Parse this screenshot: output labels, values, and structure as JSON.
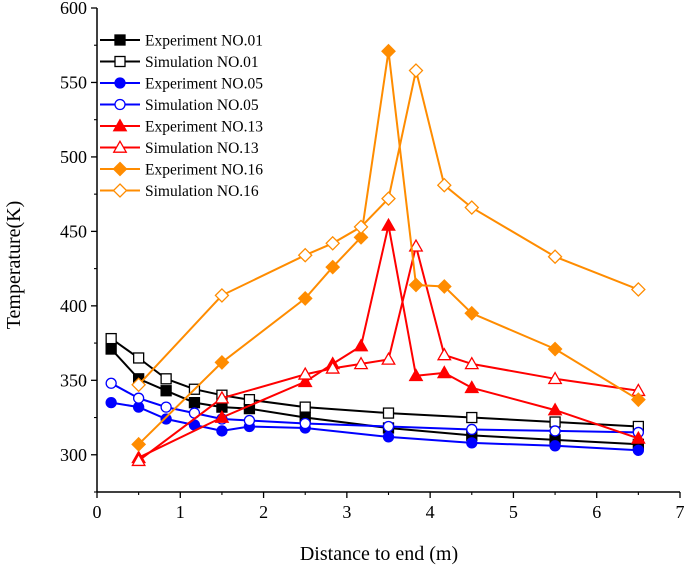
{
  "chart_data": {
    "type": "line",
    "title": "",
    "xlabel": "Distance to end (m)",
    "ylabel": "Temperature(K)",
    "xlim": [
      0,
      7
    ],
    "ylim": [
      275,
      600
    ],
    "xticks": [
      "0",
      "1",
      "2",
      "3",
      "4",
      "5",
      "6",
      "7"
    ],
    "yticks": [
      "300",
      "350",
      "400",
      "450",
      "500",
      "550",
      "600"
    ],
    "ytick_values": [
      300,
      350,
      400,
      450,
      500,
      550,
      600
    ],
    "xtick_values": [
      0,
      1,
      2,
      3,
      4,
      5,
      6,
      7
    ],
    "legend_position": "top-left",
    "series": [
      {
        "name": "Experiment NO.01",
        "color": "#000000",
        "marker": "square",
        "filled": true,
        "x": [
          0.17,
          0.5,
          0.83,
          1.17,
          1.5,
          1.83,
          2.5,
          3.5,
          4.5,
          5.5,
          6.5
        ],
        "y": [
          371,
          351,
          343,
          335,
          332,
          331,
          325,
          318,
          313,
          310,
          307
        ]
      },
      {
        "name": "Simulation NO.01",
        "color": "#000000",
        "marker": "square",
        "filled": false,
        "x": [
          0.17,
          0.5,
          0.83,
          1.17,
          1.5,
          1.83,
          2.5,
          3.5,
          4.5,
          5.5,
          6.5
        ],
        "y": [
          378,
          365,
          351,
          344,
          340,
          337,
          332,
          328,
          325,
          322,
          319
        ]
      },
      {
        "name": "Experiment NO.05",
        "color": "#0000ff",
        "marker": "circle",
        "filled": true,
        "x": [
          0.17,
          0.5,
          0.83,
          1.17,
          1.5,
          1.83,
          2.5,
          3.5,
          4.5,
          5.5,
          6.5
        ],
        "y": [
          335,
          332,
          324,
          320,
          316,
          319,
          318,
          312,
          308,
          306,
          303
        ]
      },
      {
        "name": "Simulation NO.05",
        "color": "#0000ff",
        "marker": "circle",
        "filled": false,
        "x": [
          0.17,
          0.5,
          0.83,
          1.17,
          1.5,
          1.83,
          2.5,
          3.5,
          4.5,
          5.5,
          6.5
        ],
        "y": [
          348,
          338,
          332,
          328,
          324,
          323,
          321,
          319,
          317,
          316,
          315
        ]
      },
      {
        "name": "Experiment NO.13",
        "color": "#ff0000",
        "marker": "triangle",
        "filled": true,
        "x": [
          0.5,
          1.5,
          2.5,
          2.83,
          3.17,
          3.5,
          3.83,
          4.17,
          4.5,
          5.5,
          6.5
        ],
        "y": [
          298,
          325,
          349,
          361,
          373,
          454,
          353,
          355,
          345,
          330,
          311
        ]
      },
      {
        "name": "Simulation NO.13",
        "color": "#ff0000",
        "marker": "triangle",
        "filled": false,
        "x": [
          0.5,
          1.5,
          2.5,
          2.83,
          3.17,
          3.5,
          3.83,
          4.17,
          4.5,
          5.5,
          6.5
        ],
        "y": [
          296,
          338,
          354,
          358,
          361,
          364,
          440,
          367,
          361,
          351,
          343
        ]
      },
      {
        "name": "Experiment NO.16",
        "color": "#ff8c00",
        "marker": "diamond",
        "filled": true,
        "x": [
          0.5,
          1.5,
          2.5,
          2.83,
          3.17,
          3.5,
          3.83,
          4.17,
          4.5,
          5.5,
          6.5
        ],
        "y": [
          307,
          362,
          405,
          426,
          446,
          571,
          414,
          413,
          395,
          371,
          337
        ]
      },
      {
        "name": "Simulation NO.16",
        "color": "#ff8c00",
        "marker": "diamond",
        "filled": false,
        "x": [
          0.5,
          1.5,
          2.5,
          2.83,
          3.17,
          3.5,
          3.83,
          4.17,
          4.5,
          5.5,
          6.5
        ],
        "y": [
          347,
          407,
          434,
          442,
          453,
          472,
          558,
          481,
          466,
          433,
          411
        ]
      }
    ]
  }
}
